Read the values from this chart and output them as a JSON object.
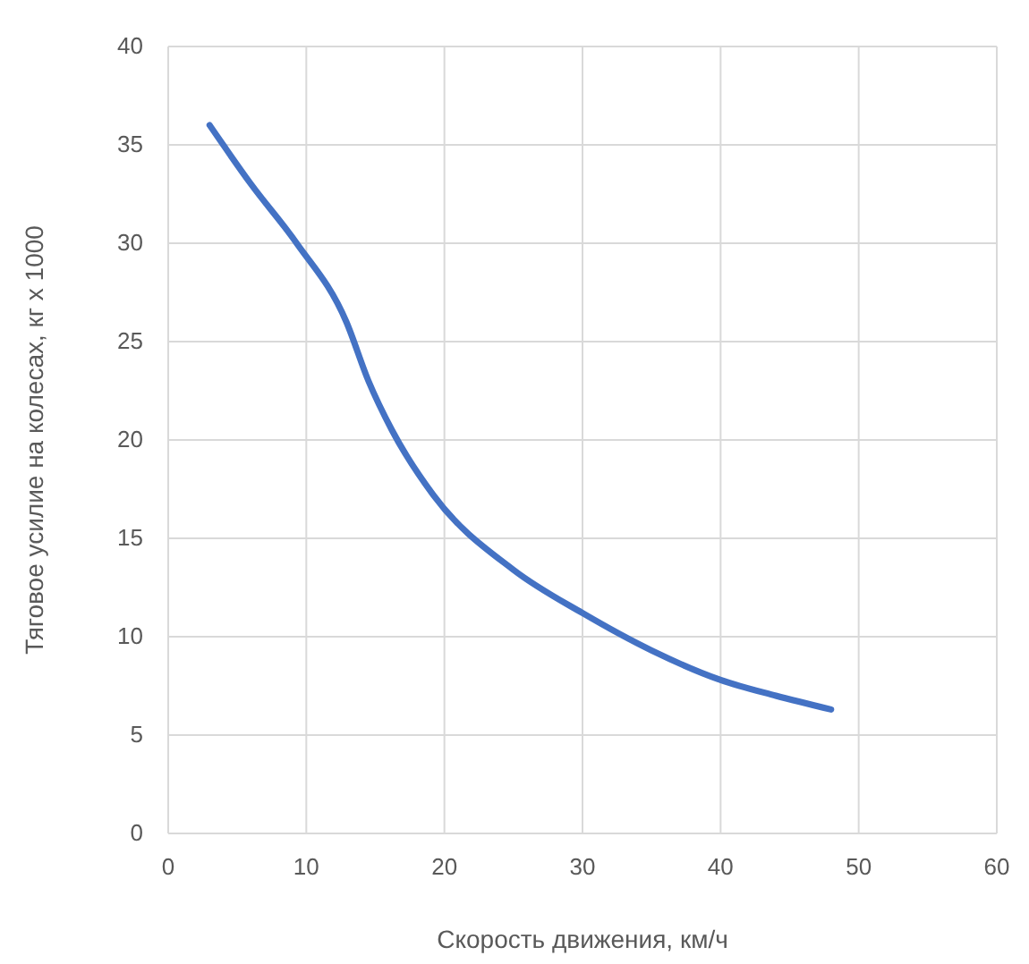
{
  "chart_data": {
    "type": "line",
    "xlabel": "Скорость движения, км/ч",
    "ylabel": "Тяговое усилие на колесах, кг х 1000",
    "x": [
      3,
      6,
      9.3,
      12.9,
      14.5,
      16.2,
      19.2,
      25,
      30,
      35,
      40,
      44,
      48
    ],
    "series": [
      {
        "color": "#4472c4",
        "values": [
          36,
          33,
          30,
          26,
          23,
          20.5,
          17.2,
          13.4,
          11.2,
          9.3,
          7.8,
          7,
          6.3
        ]
      }
    ],
    "xlim": [
      0,
      60
    ],
    "xticks": [
      0,
      10,
      20,
      30,
      40,
      50,
      60
    ],
    "ylim": [
      0,
      40
    ],
    "yticks": [
      0,
      5,
      10,
      15,
      20,
      25,
      30,
      35,
      40
    ],
    "grid": true,
    "marker": "none",
    "line_style": "solid"
  }
}
